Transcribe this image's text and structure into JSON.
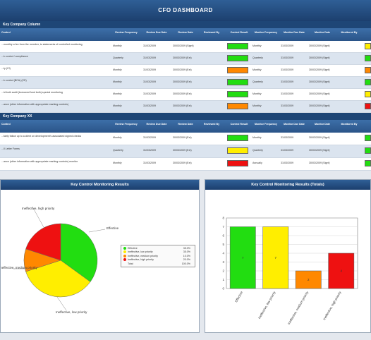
{
  "dashboard": {
    "title": "CFO DASHBOARD"
  },
  "sections": [
    {
      "label": "Key Company Column"
    },
    {
      "label": "Key Company XX"
    }
  ],
  "columns": [
    "Control",
    "Review Frequency",
    "Review Due Date",
    "Review Date",
    "Reviewed By",
    "Control Result",
    "Monitor Frequency",
    "Monitor Due Date",
    "Monitor Date",
    "Monitored By",
    ""
  ],
  "table1_rows": [
    {
      "text": "...monthly a fee from the member, to statements of controlled monitoring",
      "freq": "Monthly",
      "due": "31/03/2009",
      "date": "30/03/2009 (Signf)",
      "monitor": "Monthly",
      "status": "green",
      "mdue": "31/03/2009",
      "mdate": "30/03/2009 (Signf)",
      "end": "yellow"
    },
    {
      "text": "...k control / compliance",
      "freq": "Quarterly",
      "due": "31/03/2009",
      "date": "30/03/2009 (Ext)",
      "monitor": "Quarterly",
      "status": "green",
      "mdue": "31/03/2009",
      "mdate": "30/03/2009 (Signf)",
      "end": "green"
    },
    {
      "text": "...ty (CI)",
      "freq": "Monthly",
      "due": "31/03/2009",
      "date": "30/03/2009 (Ext)",
      "monitor": "Monthly",
      "status": "orange",
      "mdue": "31/03/2009",
      "mdate": "30/03/2009 (Signf)",
      "end": "orange"
    },
    {
      "text": "...k control (BCA) (CE)",
      "freq": "Monthly",
      "due": "31/03/2009",
      "date": "30/03/2009 (Ext)",
      "monitor": "Quarterly",
      "status": "green",
      "mdue": "31/03/2009",
      "mdate": "30/03/2009 (Signf)",
      "end": "green"
    },
    {
      "text": "...ld both audit (borrowed fund both) special monitoring",
      "freq": "Monthly",
      "due": "31/03/2009",
      "date": "30/03/2009 (Ext)",
      "monitor": "Monthly",
      "status": "green",
      "mdue": "31/03/2009",
      "mdate": "30/03/2009 (Signf)",
      "end": "yellow"
    },
    {
      "text": "...ance (other information with appropriate marking controls)",
      "freq": "Monthly",
      "due": "31/03/2009",
      "date": "30/03/2009 (Ext)",
      "monitor": "Monthly",
      "status": "orange",
      "mdue": "31/03/2009",
      "mdate": "30/03/2009 (Signf)",
      "end": "red"
    }
  ],
  "table2_rows": [
    {
      "text": "...fairly follow up to a client on development's associated signed checks",
      "freq": "Monthly",
      "due": "31/03/2009",
      "date": "30/03/2009 (Ext)",
      "monitor": "Monthly",
      "status": "green",
      "mdue": "31/03/2009",
      "mdate": "30/03/2009 (Signf)",
      "end": "green"
    },
    {
      "text": "...ll Letter Forms",
      "freq": "Quarterly",
      "due": "31/03/2009",
      "date": "30/03/2009 (Ext)",
      "monitor": "Quarterly",
      "status": "yellow",
      "mdue": "31/03/2009",
      "mdate": "30/03/2009 (Signf)",
      "end": "green"
    },
    {
      "text": "...ance (other information with appropriate marking controls) monitor",
      "freq": "Monthly",
      "due": "31/03/2009",
      "date": "30/03/2009 (Ext)",
      "monitor": "Annually",
      "status": "red",
      "mdue": "31/03/2009",
      "mdate": "30/03/2009 (Signf)",
      "end": "green"
    }
  ],
  "colors": {
    "green": "#22dd11",
    "yellow": "#ffee00",
    "orange": "#ff8800",
    "red": "#ee1111"
  },
  "pie_panel": {
    "title": "Key Control Monitoring Results",
    "labels": {
      "red": "Ineffective, high priority",
      "green": "Effective",
      "yellow": "Ineffective, low priority",
      "orange": "Ineffective, medium priority"
    },
    "legend": [
      {
        "name": "Effective",
        "value": "35.0%",
        "color": "green"
      },
      {
        "name": "Ineffective, low priority",
        "value": "35.0%",
        "color": "yellow"
      },
      {
        "name": "Ineffective, medium priority",
        "value": "10.0%",
        "color": "orange"
      },
      {
        "name": "Ineffective, high priority",
        "value": "20.0%",
        "color": "red"
      },
      {
        "name": "Total",
        "value": "100.0%",
        "color": ""
      }
    ]
  },
  "chart_data": [
    {
      "type": "pie",
      "title": "Key Control Monitoring Results",
      "categories": [
        "Effective",
        "Ineffective, low priority",
        "Ineffective, medium priority",
        "Ineffective, high priority"
      ],
      "values": [
        35,
        35,
        10,
        20
      ],
      "colors": [
        "#22dd11",
        "#ffee00",
        "#ff8800",
        "#ee1111"
      ]
    },
    {
      "type": "bar",
      "title": "Key Control Monitoring Results (Totals)",
      "categories": [
        "Effective",
        "Ineffective, low priority",
        "Ineffective, medium priority",
        "Ineffective, high priority"
      ],
      "values": [
        7,
        7,
        2,
        4
      ],
      "colors": [
        "#22dd11",
        "#ffee00",
        "#ff8800",
        "#ee1111"
      ],
      "ylim": [
        0,
        8
      ],
      "yticks": [
        "0",
        "1",
        "2",
        "3",
        "4",
        "5",
        "6",
        "7",
        "8"
      ],
      "grid": true
    }
  ]
}
